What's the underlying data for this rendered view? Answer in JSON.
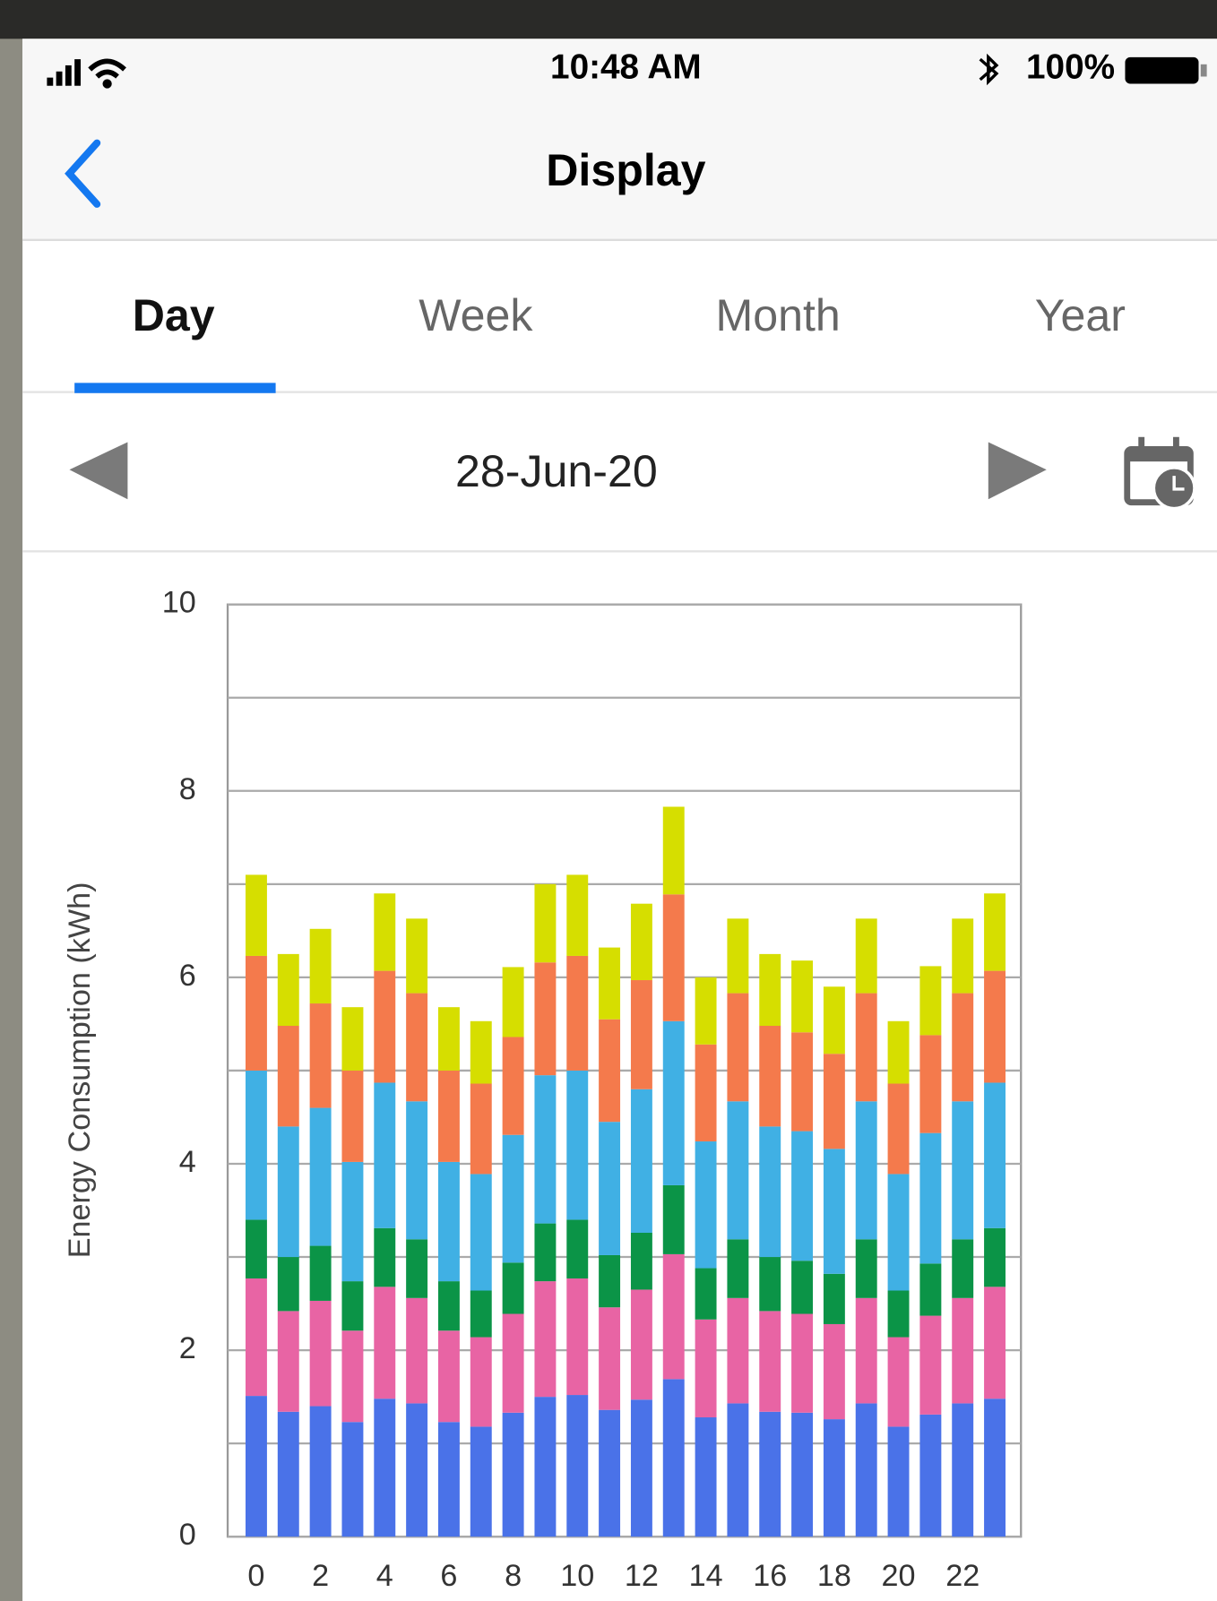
{
  "status_bar": {
    "time": "10:48 AM",
    "battery": "100%"
  },
  "nav": {
    "title": "Display"
  },
  "tabs": [
    "Day",
    "Week",
    "Month",
    "Year"
  ],
  "date": "28-Jun-20",
  "chart_data": {
    "type": "stacked_bar",
    "ylabel": "Energy Consumption (kWh)",
    "categories": [
      "0",
      null,
      "2",
      null,
      "4",
      null,
      "6",
      null,
      "8",
      null,
      "10",
      null,
      "12",
      null,
      "14",
      null,
      "16",
      null,
      "18",
      null,
      "20",
      null,
      "22",
      null
    ],
    "series": [
      {
        "color": "#4a72e8",
        "values": [
          1.51,
          1.34,
          1.4,
          1.23,
          1.48,
          1.43,
          1.23,
          1.18,
          1.33,
          1.5,
          1.52,
          1.36,
          1.47,
          1.69,
          1.28,
          1.43,
          1.34,
          1.33,
          1.26,
          1.43,
          1.18,
          1.31,
          1.43,
          1.48
        ]
      },
      {
        "color": "#e864a4",
        "values": [
          1.26,
          1.08,
          1.13,
          0.98,
          1.2,
          1.13,
          0.98,
          0.96,
          1.06,
          1.24,
          1.25,
          1.1,
          1.18,
          1.34,
          1.05,
          1.13,
          1.08,
          1.06,
          1.02,
          1.13,
          0.96,
          1.06,
          1.13,
          1.2
        ]
      },
      {
        "color": "#0b9447",
        "values": [
          0.63,
          0.58,
          0.59,
          0.53,
          0.63,
          0.63,
          0.53,
          0.5,
          0.55,
          0.62,
          0.63,
          0.56,
          0.61,
          0.74,
          0.55,
          0.63,
          0.58,
          0.57,
          0.54,
          0.63,
          0.5,
          0.56,
          0.63,
          0.63
        ]
      },
      {
        "color": "#40b0e4",
        "values": [
          1.6,
          1.4,
          1.48,
          1.28,
          1.56,
          1.48,
          1.28,
          1.25,
          1.37,
          1.59,
          1.6,
          1.43,
          1.54,
          1.76,
          1.36,
          1.48,
          1.4,
          1.39,
          1.34,
          1.48,
          1.25,
          1.4,
          1.48,
          1.56
        ]
      },
      {
        "color": "#f47a4c",
        "values": [
          1.23,
          1.08,
          1.12,
          0.98,
          1.2,
          1.16,
          0.98,
          0.97,
          1.05,
          1.21,
          1.23,
          1.1,
          1.17,
          1.36,
          1.04,
          1.16,
          1.08,
          1.06,
          1.02,
          1.16,
          0.97,
          1.05,
          1.16,
          1.2
        ]
      },
      {
        "color": "#d6de00",
        "values": [
          0.87,
          0.77,
          0.8,
          0.68,
          0.83,
          0.8,
          0.68,
          0.67,
          0.75,
          0.84,
          0.87,
          0.77,
          0.82,
          0.94,
          0.72,
          0.8,
          0.77,
          0.77,
          0.72,
          0.8,
          0.67,
          0.74,
          0.8,
          0.83
        ]
      }
    ],
    "ylim": [
      0,
      10
    ],
    "yticks": [
      0,
      2,
      4,
      6,
      8,
      10
    ],
    "minor_yticks": [
      1,
      3,
      5,
      7,
      9
    ],
    "grid": true
  }
}
